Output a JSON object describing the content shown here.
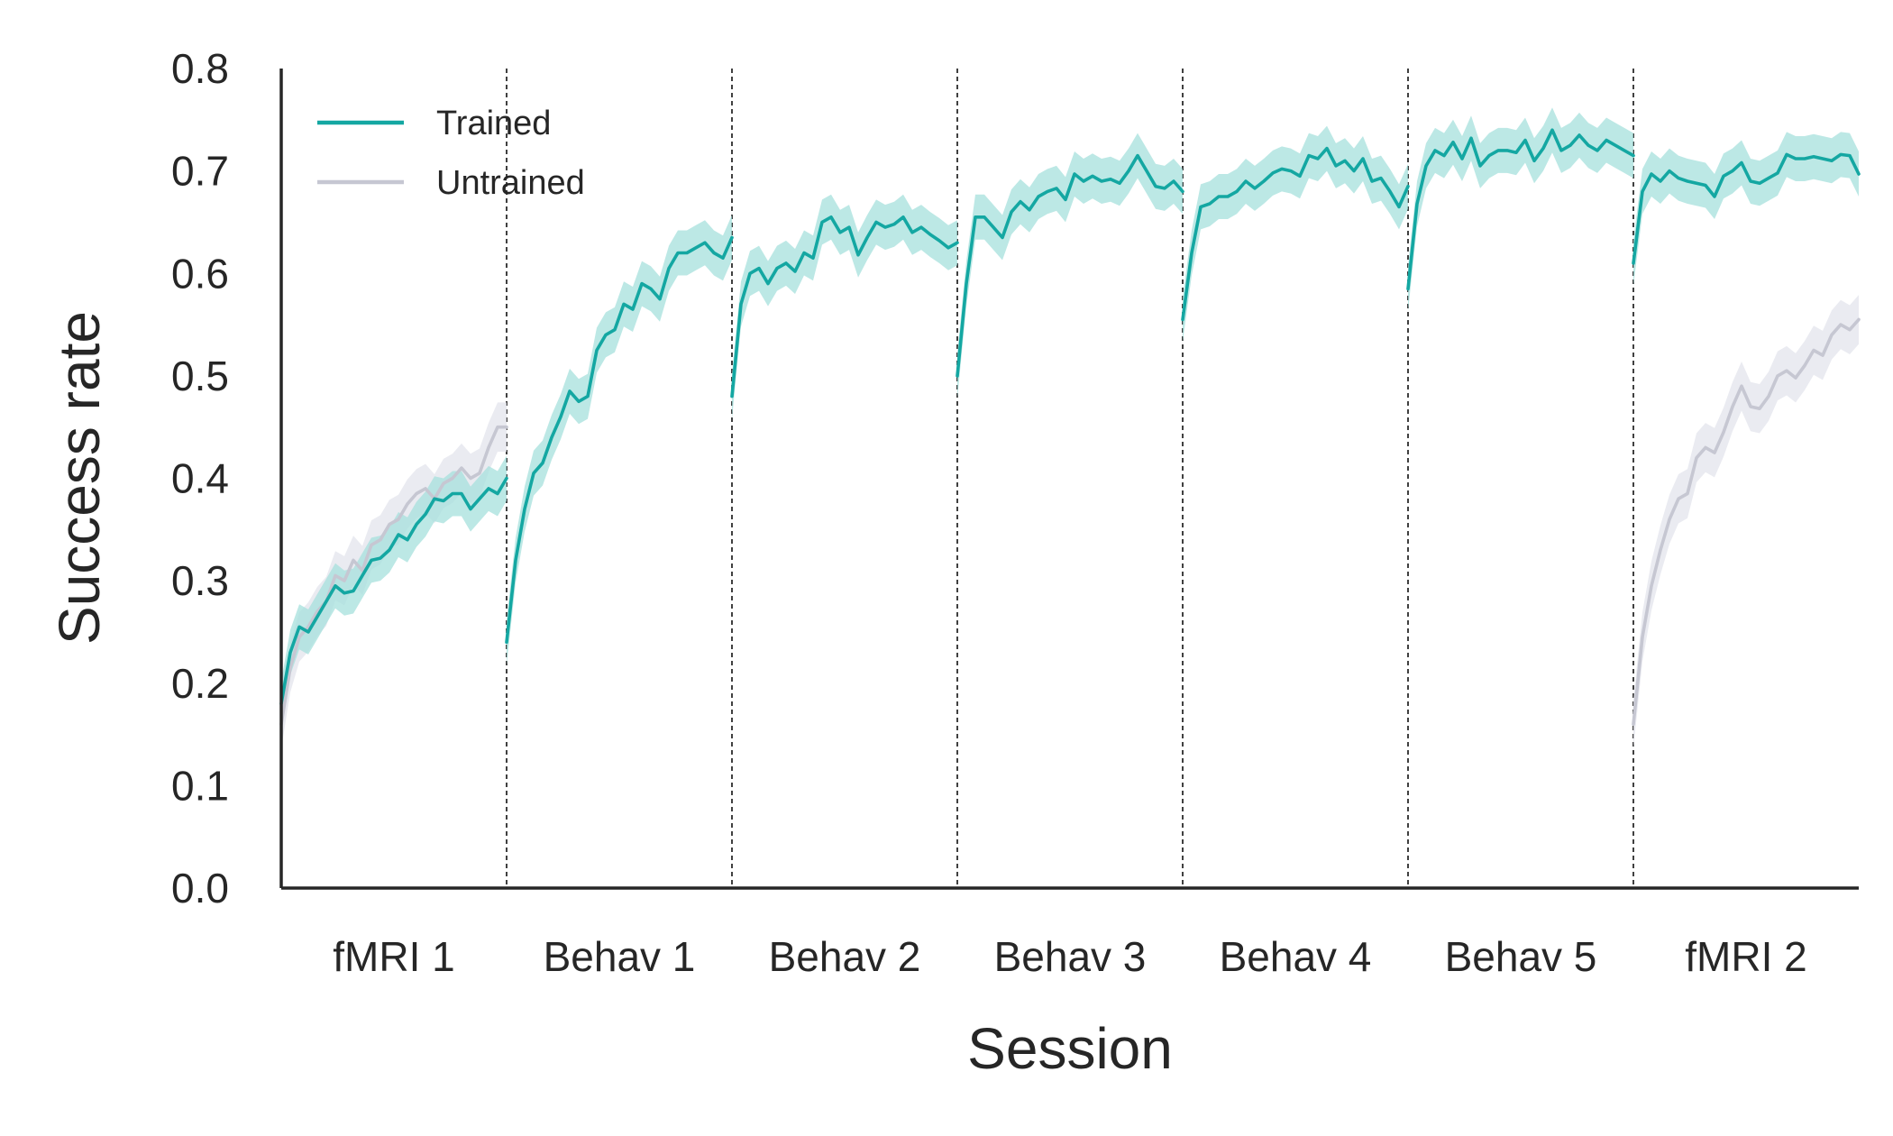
{
  "chart_data": {
    "type": "line",
    "title": "",
    "xlabel": "Session",
    "ylabel": "Success rate",
    "ylim": [
      0,
      0.8
    ],
    "yticks": [
      "0.0",
      "0.1",
      "0.2",
      "0.3",
      "0.4",
      "0.5",
      "0.6",
      "0.7",
      "0.8"
    ],
    "sessions": [
      "fMRI 1",
      "Behav 1",
      "Behav 2",
      "Behav 3",
      "Behav 4",
      "Behav 5",
      "fMRI 2"
    ],
    "session_dividers": "dashed vertical lines between sessions",
    "grid": false,
    "legend": {
      "position": "top-left",
      "entries": [
        "Trained",
        "Untrained"
      ]
    },
    "colors": {
      "Trained": "#14a7a2",
      "Untrained": "#c6c7d2",
      "trained_band": "#a6e0dc",
      "untrained_band": "#e5e6ee",
      "axis": "#262626"
    },
    "x_unit": "session position (0-7; each session spans 1 unit)",
    "series": [
      {
        "name": "Trained",
        "ci_halfwidth": 0.022,
        "segments": [
          {
            "session": "fMRI 1",
            "x": [
              0.0,
              0.04,
              0.08,
              0.12,
              0.16,
              0.2,
              0.24,
              0.28,
              0.32,
              0.36,
              0.4,
              0.44,
              0.48,
              0.52,
              0.56,
              0.6,
              0.64,
              0.68,
              0.72,
              0.76,
              0.8,
              0.84,
              0.88,
              0.92,
              0.96,
              1.0
            ],
            "y": [
              0.18,
              0.23,
              0.255,
              0.25,
              0.265,
              0.28,
              0.295,
              0.288,
              0.29,
              0.305,
              0.32,
              0.322,
              0.33,
              0.345,
              0.34,
              0.355,
              0.365,
              0.38,
              0.378,
              0.385,
              0.385,
              0.37,
              0.38,
              0.39,
              0.385,
              0.4
            ]
          },
          {
            "session": "Behav 1",
            "x": [
              1.0,
              1.04,
              1.08,
              1.12,
              1.16,
              1.2,
              1.24,
              1.28,
              1.32,
              1.36,
              1.4,
              1.44,
              1.48,
              1.52,
              1.56,
              1.6,
              1.64,
              1.68,
              1.72,
              1.76,
              1.8,
              1.84,
              1.88,
              1.92,
              1.96,
              2.0
            ],
            "y": [
              0.24,
              0.32,
              0.37,
              0.405,
              0.415,
              0.44,
              0.46,
              0.485,
              0.475,
              0.48,
              0.525,
              0.54,
              0.545,
              0.57,
              0.565,
              0.59,
              0.585,
              0.575,
              0.605,
              0.62,
              0.62,
              0.625,
              0.63,
              0.62,
              0.615,
              0.635
            ]
          },
          {
            "session": "Behav 2",
            "x": [
              2.0,
              2.04,
              2.08,
              2.12,
              2.16,
              2.2,
              2.24,
              2.28,
              2.32,
              2.36,
              2.4,
              2.44,
              2.48,
              2.52,
              2.56,
              2.6,
              2.64,
              2.68,
              2.72,
              2.76,
              2.8,
              2.84,
              2.88,
              2.92,
              2.96,
              3.0
            ],
            "y": [
              0.48,
              0.57,
              0.6,
              0.605,
              0.59,
              0.605,
              0.61,
              0.602,
              0.62,
              0.615,
              0.65,
              0.655,
              0.64,
              0.645,
              0.618,
              0.635,
              0.65,
              0.645,
              0.648,
              0.655,
              0.64,
              0.645,
              0.638,
              0.632,
              0.625,
              0.63
            ]
          },
          {
            "session": "Behav 3",
            "x": [
              3.0,
              3.04,
              3.08,
              3.12,
              3.16,
              3.2,
              3.24,
              3.28,
              3.32,
              3.36,
              3.4,
              3.44,
              3.48,
              3.52,
              3.56,
              3.6,
              3.64,
              3.68,
              3.72,
              3.76,
              3.8,
              3.84,
              3.88,
              3.92,
              3.96,
              4.0
            ],
            "y": [
              0.5,
              0.59,
              0.655,
              0.655,
              0.645,
              0.635,
              0.66,
              0.67,
              0.662,
              0.675,
              0.68,
              0.683,
              0.672,
              0.697,
              0.69,
              0.695,
              0.69,
              0.692,
              0.688,
              0.7,
              0.715,
              0.7,
              0.685,
              0.683,
              0.69,
              0.68
            ]
          },
          {
            "session": "Behav 4",
            "x": [
              4.0,
              4.04,
              4.08,
              4.12,
              4.16,
              4.2,
              4.24,
              4.28,
              4.32,
              4.36,
              4.4,
              4.44,
              4.48,
              4.52,
              4.56,
              4.6,
              4.64,
              4.68,
              4.72,
              4.76,
              4.8,
              4.84,
              4.88,
              4.92,
              4.96,
              5.0
            ],
            "y": [
              0.555,
              0.62,
              0.665,
              0.668,
              0.675,
              0.675,
              0.68,
              0.69,
              0.683,
              0.69,
              0.698,
              0.702,
              0.7,
              0.695,
              0.715,
              0.712,
              0.722,
              0.705,
              0.71,
              0.7,
              0.712,
              0.69,
              0.693,
              0.68,
              0.665,
              0.685
            ]
          },
          {
            "session": "Behav 5",
            "x": [
              5.0,
              5.04,
              5.08,
              5.12,
              5.16,
              5.2,
              5.24,
              5.28,
              5.32,
              5.36,
              5.4,
              5.44,
              5.48,
              5.52,
              5.56,
              5.6,
              5.64,
              5.68,
              5.72,
              5.76,
              5.8,
              5.84,
              5.88,
              5.92,
              5.96,
              6.0
            ],
            "y": [
              0.585,
              0.668,
              0.705,
              0.72,
              0.715,
              0.728,
              0.712,
              0.732,
              0.705,
              0.715,
              0.72,
              0.72,
              0.718,
              0.73,
              0.71,
              0.722,
              0.74,
              0.72,
              0.725,
              0.735,
              0.725,
              0.72,
              0.73,
              0.725,
              0.72,
              0.715
            ]
          },
          {
            "session": "fMRI 2",
            "x": [
              6.0,
              6.04,
              6.08,
              6.12,
              6.16,
              6.2,
              6.24,
              6.28,
              6.32,
              6.36,
              6.4,
              6.44,
              6.48,
              6.52,
              6.56,
              6.6,
              6.64,
              6.68,
              6.72,
              6.76,
              6.8,
              6.84,
              6.88,
              6.92,
              6.96,
              7.0
            ],
            "y": [
              0.61,
              0.68,
              0.697,
              0.69,
              0.7,
              0.693,
              0.69,
              0.688,
              0.686,
              0.675,
              0.695,
              0.7,
              0.708,
              0.69,
              0.688,
              0.693,
              0.698,
              0.716,
              0.712,
              0.712,
              0.714,
              0.712,
              0.71,
              0.716,
              0.715,
              0.697
            ]
          }
        ]
      },
      {
        "name": "Untrained",
        "ci_halfwidth": 0.024,
        "segments": [
          {
            "session": "fMRI 1",
            "x": [
              0.0,
              0.04,
              0.08,
              0.12,
              0.16,
              0.2,
              0.24,
              0.28,
              0.32,
              0.36,
              0.4,
              0.44,
              0.48,
              0.52,
              0.56,
              0.6,
              0.64,
              0.68,
              0.72,
              0.76,
              0.8,
              0.84,
              0.88,
              0.92,
              0.96,
              1.0
            ],
            "y": [
              0.16,
              0.215,
              0.245,
              0.255,
              0.27,
              0.28,
              0.305,
              0.3,
              0.32,
              0.31,
              0.335,
              0.34,
              0.355,
              0.36,
              0.375,
              0.385,
              0.39,
              0.38,
              0.395,
              0.4,
              0.41,
              0.4,
              0.405,
              0.43,
              0.45,
              0.45
            ]
          },
          {
            "session": "fMRI 2",
            "x": [
              6.0,
              6.04,
              6.08,
              6.12,
              6.16,
              6.2,
              6.24,
              6.28,
              6.32,
              6.36,
              6.4,
              6.44,
              6.48,
              6.52,
              6.56,
              6.6,
              6.64,
              6.68,
              6.72,
              6.76,
              6.8,
              6.84,
              6.88,
              6.92,
              6.96,
              7.0
            ],
            "y": [
              0.16,
              0.245,
              0.295,
              0.33,
              0.36,
              0.38,
              0.385,
              0.42,
              0.43,
              0.425,
              0.445,
              0.47,
              0.49,
              0.47,
              0.468,
              0.48,
              0.5,
              0.505,
              0.498,
              0.51,
              0.525,
              0.52,
              0.54,
              0.55,
              0.545,
              0.555
            ]
          }
        ]
      }
    ]
  }
}
